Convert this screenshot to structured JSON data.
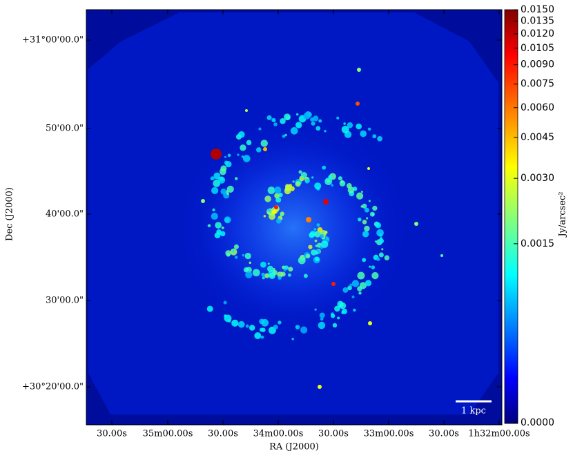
{
  "chart_data": {
    "type": "image",
    "x_label": "RA (J2000)",
    "y_label": "Dec (J2000)",
    "xticks": [
      "30.00s",
      "35m00.00s",
      "30.00s",
      "34m00.00s",
      "30.00s",
      "33m00.00s",
      "30.00s",
      "1h32m00.00s"
    ],
    "yticks": [
      "+31°00'00.0\"",
      "50'00.0\"",
      "40'00.0\"",
      "30'00.0\"",
      "+30°20'00.0\""
    ],
    "colorbar": {
      "label": "Jy/arcsec²",
      "lim": [
        0,
        0.015
      ],
      "ticks": [
        {
          "value": 0,
          "label": "0.0000"
        },
        {
          "value": 0.0015,
          "label": "0.0015"
        },
        {
          "value": 0.003,
          "label": "0.0030"
        },
        {
          "value": 0.0045,
          "label": "0.0045"
        },
        {
          "value": 0.006,
          "label": "0.0060"
        },
        {
          "value": 0.0075,
          "label": "0.0075"
        },
        {
          "value": 0.009,
          "label": "0.0090"
        },
        {
          "value": 0.0105,
          "label": "0.0105"
        },
        {
          "value": 0.012,
          "label": "0.0120"
        },
        {
          "value": 0.0135,
          "label": "0.0135"
        },
        {
          "value": 0.015,
          "label": "0.0150"
        }
      ]
    },
    "scale_bar": "1 kpc"
  }
}
